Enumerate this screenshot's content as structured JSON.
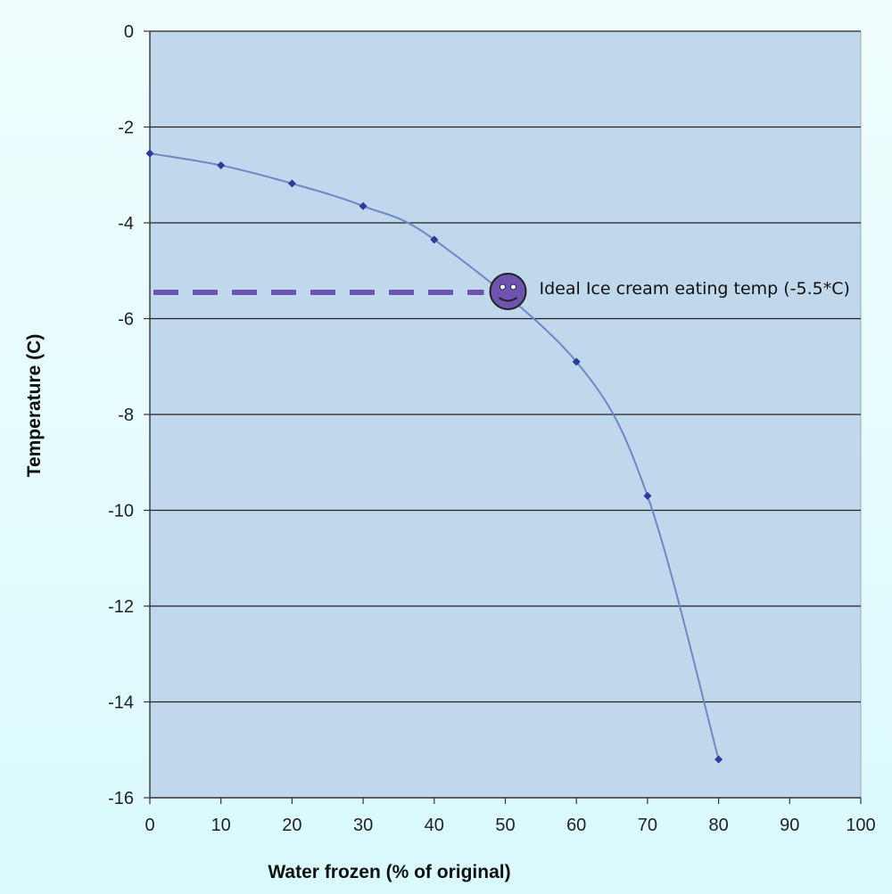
{
  "chart_data": {
    "type": "line",
    "title": "",
    "xlabel": "Water frozen (% of original)",
    "ylabel": "Temperature (C)",
    "xlim": [
      0,
      100
    ],
    "ylim": [
      -16,
      0
    ],
    "x_ticks": [
      0,
      10,
      20,
      30,
      40,
      50,
      60,
      70,
      80,
      90,
      100
    ],
    "y_ticks": [
      0,
      -2,
      -4,
      -6,
      -8,
      -10,
      -12,
      -14,
      -16
    ],
    "grid": "horizontal",
    "legend": "none",
    "series": [
      {
        "x": [
          0,
          10,
          20,
          30,
          40,
          60,
          70,
          80
        ],
        "y": [
          -2.55,
          -2.8,
          -3.18,
          -3.65,
          -4.35,
          -6.9,
          -9.7,
          -15.2
        ],
        "color": "#2b3a9c",
        "marker": "diamond"
      }
    ],
    "annotation": {
      "text": "Ideal Ice cream eating temp (-5.5*C)",
      "x": 50,
      "y": -5.45,
      "icon": "smiley-face-icon",
      "guide_line": "dashed-horizontal-to-y-axis",
      "color": "#6f53b1"
    },
    "colors": {
      "plot_background": "#c0d8ec",
      "grid": "#222222",
      "axis": "#333333"
    }
  }
}
